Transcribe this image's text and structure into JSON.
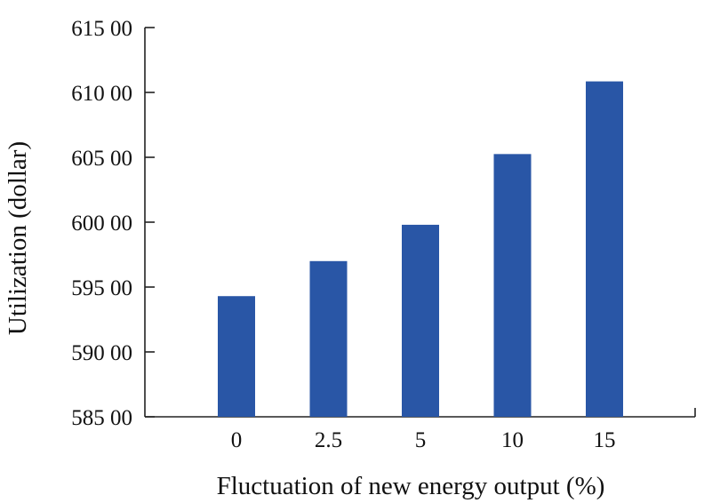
{
  "chart_data": {
    "type": "bar",
    "title": "",
    "xlabel": "Fluctuation  of new energy  output (%)",
    "ylabel": "Utilization  (dollar)",
    "categories": [
      "0",
      "2.5",
      "5",
      "10",
      "15"
    ],
    "values": [
      59430,
      59700,
      59980,
      60525,
      61085
    ],
    "ylim": [
      58500,
      61500
    ],
    "yticks": [
      58500,
      59000,
      59500,
      60000,
      60500,
      61000,
      61500
    ],
    "ytick_labels": [
      "585 00",
      "590 00",
      "595 00",
      "600 00",
      "605 00",
      "610 00",
      "615 00"
    ],
    "bar_color": "#2956a6",
    "grid": false,
    "legend": "none"
  }
}
